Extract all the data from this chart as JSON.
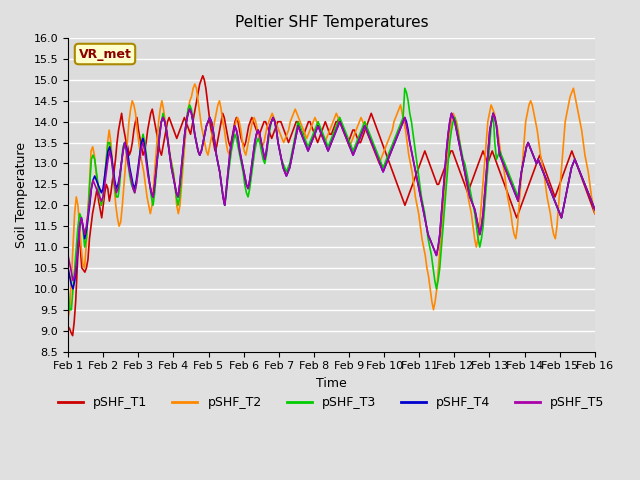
{
  "title": "Peltier SHF Temperatures",
  "xlabel": "Time",
  "ylabel": "Soil Temperature",
  "ylim": [
    8.5,
    16.0
  ],
  "yticks": [
    8.5,
    9.0,
    9.5,
    10.0,
    10.5,
    11.0,
    11.5,
    12.0,
    12.5,
    13.0,
    13.5,
    14.0,
    14.5,
    15.0,
    15.5,
    16.0
  ],
  "xtick_labels": [
    "Feb 1",
    "Feb 2",
    "Feb 3",
    "Feb 4",
    "Feb 5",
    "Feb 6",
    "Feb 7",
    "Feb 8",
    "Feb 9",
    "Feb 10",
    "Feb 11",
    "Feb 12",
    "Feb 13",
    "Feb 14",
    "Feb 15",
    "Feb 16"
  ],
  "series_colors": [
    "#cc0000",
    "#ff8800",
    "#00cc00",
    "#0000cc",
    "#aa00aa"
  ],
  "series_labels": [
    "pSHF_T1",
    "pSHF_T2",
    "pSHF_T3",
    "pSHF_T4",
    "pSHF_T5"
  ],
  "annotation_text": "VR_met",
  "annotation_color": "#8b0000",
  "annotation_bg": "#ffffcc",
  "annotation_edge": "#aa8800",
  "background_color": "#e0e0e0",
  "plot_bg": "#dcdcdc",
  "grid_color": "#ffffff",
  "t1": [
    9.1,
    9.05,
    8.95,
    8.88,
    9.2,
    9.7,
    10.5,
    11.2,
    11.0,
    10.5,
    10.45,
    10.4,
    10.5,
    10.7,
    11.2,
    11.5,
    11.8,
    12.0,
    12.2,
    12.4,
    12.1,
    11.9,
    11.7,
    12.0,
    12.3,
    12.5,
    12.4,
    12.1,
    12.3,
    12.6,
    12.8,
    13.1,
    13.5,
    13.8,
    14.0,
    14.2,
    13.9,
    13.7,
    13.5,
    13.4,
    13.2,
    13.3,
    13.5,
    13.8,
    14.0,
    14.1,
    13.8,
    13.6,
    13.4,
    13.2,
    13.3,
    13.5,
    13.8,
    14.0,
    14.2,
    14.3,
    14.1,
    13.9,
    13.7,
    13.5,
    13.3,
    13.2,
    13.4,
    13.6,
    13.8,
    14.0,
    14.1,
    14.0,
    13.9,
    13.8,
    13.7,
    13.6,
    13.7,
    13.8,
    13.9,
    14.0,
    14.1,
    14.0,
    13.9,
    13.8,
    13.7,
    13.9,
    14.1,
    14.3,
    14.5,
    14.7,
    14.9,
    15.0,
    15.1,
    15.0,
    14.8,
    14.5,
    14.2,
    13.9,
    13.7,
    13.5,
    13.3,
    13.4,
    13.6,
    13.8,
    14.0,
    14.2,
    14.1,
    13.9,
    13.7,
    13.5,
    13.4,
    13.6,
    13.8,
    14.0,
    14.1,
    14.0,
    13.8,
    13.6,
    13.5,
    13.4,
    13.5,
    13.7,
    13.9,
    14.0,
    14.1,
    14.0,
    13.9,
    13.8,
    13.7,
    13.7,
    13.8,
    13.9,
    14.0,
    14.0,
    13.9,
    13.8,
    13.7,
    13.6,
    13.7,
    13.8,
    13.9,
    14.0,
    14.0,
    14.0,
    13.9,
    13.8,
    13.7,
    13.6,
    13.5,
    13.6,
    13.7,
    13.8,
    13.9,
    14.0,
    14.0,
    13.9,
    13.8,
    13.7,
    13.7,
    13.8,
    13.9,
    14.0,
    14.0,
    13.9,
    13.8,
    13.7,
    13.6,
    13.5,
    13.6,
    13.7,
    13.8,
    13.9,
    14.0,
    13.9,
    13.8,
    13.7,
    13.7,
    13.8,
    13.9,
    14.0,
    14.0,
    14.1,
    14.0,
    13.9,
    13.8,
    13.7,
    13.6,
    13.5,
    13.6,
    13.7,
    13.8,
    13.8,
    13.7,
    13.6,
    13.5,
    13.5,
    13.6,
    13.7,
    13.8,
    13.9,
    14.0,
    14.1,
    14.2,
    14.1,
    14.0,
    13.9,
    13.8,
    13.7,
    13.6,
    13.5,
    13.4,
    13.3,
    13.2,
    13.1,
    13.0,
    12.9,
    12.8,
    12.7,
    12.6,
    12.5,
    12.4,
    12.3,
    12.2,
    12.1,
    12.0,
    12.1,
    12.2,
    12.3,
    12.4,
    12.5,
    12.6,
    12.7,
    12.8,
    12.9,
    13.0,
    13.1,
    13.2,
    13.3,
    13.2,
    13.1,
    13.0,
    12.9,
    12.8,
    12.7,
    12.6,
    12.5,
    12.5,
    12.6,
    12.7,
    12.8,
    12.9,
    13.0,
    13.1,
    13.2,
    13.3,
    13.3,
    13.2,
    13.1,
    13.0,
    12.9,
    12.8,
    12.7,
    12.6,
    12.5,
    12.4,
    12.3,
    12.4,
    12.5,
    12.6,
    12.7,
    12.8,
    12.9,
    13.0,
    13.1,
    13.2,
    13.3,
    13.2,
    13.1,
    13.0,
    13.1,
    13.2,
    13.3,
    13.2,
    13.1,
    13.0,
    12.9,
    12.8,
    12.7,
    12.6,
    12.5,
    12.4,
    12.3,
    12.2,
    12.1,
    12.0,
    11.9,
    11.8,
    11.7,
    11.8,
    11.9,
    12.0,
    12.1,
    12.2,
    12.3,
    12.4,
    12.5,
    12.6,
    12.7,
    12.8,
    12.9,
    13.0,
    13.1,
    13.2,
    13.1,
    13.0,
    12.9,
    12.8,
    12.7,
    12.6,
    12.5,
    12.4,
    12.3,
    12.2,
    12.3,
    12.4,
    12.5,
    12.6,
    12.7,
    12.8,
    12.9,
    13.0,
    13.1,
    13.2,
    13.3,
    13.2,
    13.1,
    13.0,
    12.9,
    12.8,
    12.7,
    12.6,
    12.5,
    12.4,
    12.3,
    12.2,
    12.1,
    12.0,
    11.9,
    11.8
  ],
  "t2": [
    9.3,
    9.5,
    10.2,
    11.0,
    11.8,
    12.2,
    12.0,
    11.5,
    11.0,
    10.6,
    10.5,
    11.0,
    11.8,
    12.5,
    13.3,
    13.4,
    13.2,
    12.8,
    12.5,
    12.2,
    12.0,
    12.1,
    12.5,
    13.0,
    13.5,
    13.8,
    13.5,
    13.0,
    12.5,
    12.0,
    11.7,
    11.5,
    11.6,
    12.0,
    12.5,
    13.0,
    13.5,
    14.0,
    14.3,
    14.5,
    14.4,
    14.2,
    13.8,
    13.5,
    13.2,
    13.0,
    12.8,
    12.5,
    12.2,
    12.0,
    11.8,
    12.0,
    12.5,
    13.0,
    13.5,
    14.0,
    14.3,
    14.5,
    14.3,
    14.0,
    13.8,
    13.5,
    13.2,
    13.0,
    12.8,
    12.5,
    12.0,
    11.8,
    12.0,
    12.5,
    13.0,
    13.5,
    14.0,
    14.3,
    14.5,
    14.6,
    14.8,
    14.9,
    14.8,
    14.5,
    14.2,
    13.9,
    13.7,
    13.5,
    13.3,
    13.2,
    13.4,
    13.6,
    13.8,
    14.0,
    14.2,
    14.4,
    14.5,
    14.3,
    14.0,
    13.8,
    13.5,
    13.3,
    13.2,
    13.4,
    13.6,
    13.8,
    14.0,
    14.1,
    14.0,
    13.8,
    13.5,
    13.3,
    13.2,
    13.4,
    13.6,
    13.8,
    14.0,
    14.1,
    14.0,
    13.8,
    13.6,
    13.5,
    13.4,
    13.5,
    13.7,
    13.9,
    14.0,
    14.1,
    14.2,
    14.1,
    14.0,
    13.9,
    13.8,
    13.7,
    13.6,
    13.5,
    13.6,
    13.7,
    13.8,
    14.0,
    14.1,
    14.2,
    14.3,
    14.2,
    14.1,
    14.0,
    13.9,
    13.8,
    13.7,
    13.6,
    13.7,
    13.8,
    13.9,
    14.0,
    14.1,
    14.0,
    13.9,
    13.8,
    13.7,
    13.6,
    13.5,
    13.6,
    13.7,
    13.8,
    13.9,
    14.0,
    14.1,
    14.2,
    14.1,
    14.0,
    13.9,
    13.8,
    13.7,
    13.6,
    13.5,
    13.4,
    13.5,
    13.6,
    13.7,
    13.8,
    13.9,
    14.0,
    14.1,
    14.0,
    13.9,
    13.8,
    13.7,
    13.6,
    13.5,
    13.4,
    13.3,
    13.2,
    13.1,
    13.0,
    13.1,
    13.2,
    13.3,
    13.4,
    13.5,
    13.6,
    13.7,
    13.8,
    14.0,
    14.1,
    14.2,
    14.3,
    14.4,
    14.2,
    14.0,
    13.8,
    13.5,
    13.2,
    13.0,
    12.8,
    12.5,
    12.2,
    12.0,
    11.8,
    11.5,
    11.2,
    11.0,
    10.8,
    10.5,
    10.3,
    10.0,
    9.7,
    9.5,
    9.7,
    10.0,
    10.5,
    11.0,
    11.5,
    12.0,
    12.5,
    13.0,
    13.5,
    13.8,
    14.0,
    14.2,
    14.1,
    14.0,
    13.8,
    13.5,
    13.2,
    13.0,
    12.8,
    12.5,
    12.2,
    12.0,
    11.8,
    11.5,
    11.2,
    11.0,
    11.2,
    11.5,
    12.0,
    12.5,
    13.0,
    13.5,
    14.0,
    14.2,
    14.4,
    14.3,
    14.2,
    14.0,
    13.8,
    13.5,
    13.2,
    13.0,
    12.8,
    12.5,
    12.2,
    12.0,
    11.8,
    11.5,
    11.3,
    11.2,
    11.5,
    12.0,
    12.5,
    13.0,
    13.5,
    14.0,
    14.2,
    14.4,
    14.5,
    14.4,
    14.2,
    14.0,
    13.8,
    13.5,
    13.2,
    13.0,
    12.8,
    12.5,
    12.2,
    12.0,
    11.8,
    11.5,
    11.3,
    11.2,
    11.5,
    12.0,
    12.5,
    13.0,
    13.5,
    14.0,
    14.2,
    14.4,
    14.6,
    14.7,
    14.8,
    14.6,
    14.4,
    14.2,
    14.0,
    13.8,
    13.5,
    13.2,
    13.0,
    12.8,
    12.5,
    12.2,
    12.0,
    11.8
  ],
  "t3": [
    10.0,
    9.5,
    9.5,
    10.0,
    10.5,
    11.0,
    11.5,
    11.8,
    11.7,
    11.4,
    11.0,
    11.2,
    11.8,
    12.5,
    13.1,
    13.2,
    13.1,
    12.8,
    12.5,
    12.2,
    12.0,
    12.2,
    12.7,
    13.1,
    13.5,
    13.5,
    13.2,
    12.8,
    12.4,
    12.2,
    12.2,
    12.5,
    13.0,
    13.4,
    13.5,
    13.3,
    13.0,
    12.7,
    12.5,
    12.4,
    12.3,
    12.5,
    12.8,
    13.2,
    13.5,
    13.7,
    13.5,
    13.2,
    12.8,
    12.5,
    12.2,
    12.0,
    12.3,
    12.8,
    13.3,
    13.8,
    14.0,
    14.2,
    14.0,
    13.8,
    13.5,
    13.2,
    13.0,
    12.8,
    12.5,
    12.2,
    12.0,
    12.2,
    12.7,
    13.2,
    13.7,
    14.0,
    14.3,
    14.4,
    14.3,
    14.0,
    13.7,
    13.5,
    13.3,
    13.2,
    13.3,
    13.5,
    13.7,
    13.9,
    14.0,
    14.1,
    14.0,
    13.8,
    13.5,
    13.2,
    13.0,
    12.8,
    12.5,
    12.2,
    12.0,
    12.3,
    12.7,
    13.0,
    13.3,
    13.5,
    13.7,
    13.6,
    13.4,
    13.2,
    13.0,
    12.8,
    12.5,
    12.3,
    12.2,
    12.4,
    12.7,
    13.0,
    13.3,
    13.5,
    13.6,
    13.5,
    13.3,
    13.1,
    13.0,
    13.2,
    13.5,
    13.8,
    14.0,
    14.1,
    14.0,
    13.8,
    13.5,
    13.3,
    13.1,
    13.0,
    12.9,
    12.8,
    12.9,
    13.0,
    13.2,
    13.4,
    13.6,
    13.8,
    14.0,
    13.9,
    13.8,
    13.7,
    13.6,
    13.5,
    13.4,
    13.5,
    13.6,
    13.7,
    13.8,
    13.9,
    14.0,
    13.9,
    13.8,
    13.7,
    13.6,
    13.5,
    13.4,
    13.5,
    13.6,
    13.7,
    13.8,
    13.9,
    14.0,
    14.1,
    14.0,
    13.9,
    13.8,
    13.7,
    13.6,
    13.5,
    13.4,
    13.3,
    13.4,
    13.5,
    13.6,
    13.7,
    13.8,
    13.9,
    14.0,
    13.9,
    13.8,
    13.7,
    13.6,
    13.5,
    13.4,
    13.3,
    13.2,
    13.1,
    13.0,
    12.9,
    13.0,
    13.1,
    13.2,
    13.3,
    13.4,
    13.5,
    13.6,
    13.7,
    13.8,
    13.9,
    14.0,
    14.1,
    14.8,
    14.7,
    14.5,
    14.2,
    14.0,
    13.7,
    13.4,
    13.1,
    12.8,
    12.5,
    12.2,
    12.0,
    11.8,
    11.5,
    11.2,
    11.0,
    10.8,
    10.5,
    10.2,
    10.0,
    10.2,
    10.5,
    11.0,
    11.5,
    12.0,
    12.5,
    13.0,
    13.5,
    13.8,
    14.0,
    14.1,
    13.9,
    13.7,
    13.5,
    13.3,
    13.1,
    13.0,
    12.8,
    12.6,
    12.4,
    12.2,
    12.0,
    11.8,
    11.5,
    11.2,
    11.0,
    11.2,
    11.5,
    12.0,
    12.5,
    13.0,
    13.5,
    14.0,
    14.2,
    13.5,
    13.1,
    13.2,
    13.3,
    13.2,
    13.1,
    13.0,
    12.9,
    12.8,
    12.7,
    12.6,
    12.5,
    12.4,
    12.3,
    12.2,
    12.5,
    12.8,
    13.0,
    13.2,
    13.4,
    13.5,
    13.4,
    13.3,
    13.2,
    13.1,
    13.0,
    13.1,
    13.0,
    12.9,
    12.8,
    12.7,
    12.6,
    12.5,
    12.4,
    12.3,
    12.2,
    12.1,
    12.0,
    11.9,
    11.8,
    11.7,
    11.9,
    12.1,
    12.3,
    12.5,
    12.7,
    12.9,
    13.0,
    13.1,
    13.0,
    12.9,
    12.8,
    12.7,
    12.6,
    12.5,
    12.4,
    12.3,
    12.2,
    12.1,
    12.0,
    11.9
  ],
  "t4": [
    10.5,
    10.3,
    10.1,
    10.0,
    10.2,
    10.5,
    11.0,
    11.5,
    11.7,
    11.5,
    11.2,
    11.4,
    11.7,
    12.0,
    12.4,
    12.6,
    12.7,
    12.6,
    12.5,
    12.4,
    12.3,
    12.4,
    12.7,
    13.0,
    13.3,
    13.4,
    13.2,
    12.9,
    12.6,
    12.4,
    12.5,
    12.7,
    13.0,
    13.3,
    13.5,
    13.4,
    13.2,
    12.9,
    12.7,
    12.5,
    12.4,
    12.6,
    12.9,
    13.2,
    13.5,
    13.6,
    13.4,
    13.1,
    12.8,
    12.5,
    12.3,
    12.2,
    12.5,
    12.9,
    13.3,
    13.7,
    14.0,
    14.1,
    14.0,
    13.8,
    13.5,
    13.2,
    12.9,
    12.7,
    12.5,
    12.3,
    12.2,
    12.5,
    12.9,
    13.3,
    13.7,
    14.0,
    14.2,
    14.3,
    14.2,
    14.0,
    13.7,
    13.5,
    13.3,
    13.2,
    13.3,
    13.5,
    13.7,
    13.9,
    14.0,
    14.1,
    14.0,
    13.8,
    13.5,
    13.2,
    13.0,
    12.8,
    12.5,
    12.2,
    12.0,
    12.4,
    12.8,
    13.2,
    13.5,
    13.7,
    13.9,
    13.8,
    13.6,
    13.3,
    13.1,
    12.9,
    12.7,
    12.5,
    12.4,
    12.6,
    12.9,
    13.2,
    13.5,
    13.7,
    13.8,
    13.7,
    13.5,
    13.3,
    13.1,
    13.3,
    13.6,
    13.9,
    14.0,
    14.1,
    14.0,
    13.8,
    13.5,
    13.3,
    13.1,
    12.9,
    12.8,
    12.7,
    12.8,
    12.9,
    13.1,
    13.3,
    13.5,
    13.7,
    13.9,
    13.8,
    13.7,
    13.6,
    13.5,
    13.4,
    13.3,
    13.4,
    13.5,
    13.6,
    13.7,
    13.8,
    13.9,
    13.8,
    13.7,
    13.6,
    13.5,
    13.4,
    13.3,
    13.4,
    13.5,
    13.6,
    13.7,
    13.8,
    13.9,
    14.0,
    13.9,
    13.8,
    13.7,
    13.6,
    13.5,
    13.4,
    13.3,
    13.2,
    13.3,
    13.4,
    13.5,
    13.6,
    13.7,
    13.8,
    13.9,
    13.8,
    13.7,
    13.6,
    13.5,
    13.4,
    13.3,
    13.2,
    13.1,
    13.0,
    12.9,
    12.8,
    12.9,
    13.0,
    13.1,
    13.2,
    13.3,
    13.4,
    13.5,
    13.6,
    13.7,
    13.8,
    13.9,
    14.0,
    14.1,
    14.0,
    13.8,
    13.5,
    13.3,
    13.1,
    12.9,
    12.7,
    12.5,
    12.3,
    12.1,
    11.9,
    11.7,
    11.5,
    11.3,
    11.2,
    11.1,
    11.0,
    10.9,
    10.8,
    11.0,
    11.3,
    11.8,
    12.3,
    12.8,
    13.3,
    13.7,
    14.0,
    14.2,
    14.1,
    14.0,
    13.8,
    13.6,
    13.4,
    13.2,
    13.0,
    12.8,
    12.6,
    12.4,
    12.2,
    12.1,
    12.0,
    11.9,
    11.7,
    11.5,
    11.3,
    11.5,
    11.8,
    12.3,
    12.8,
    13.3,
    13.8,
    14.0,
    14.2,
    14.1,
    13.9,
    13.5,
    13.2,
    13.1,
    13.0,
    12.9,
    12.8,
    12.7,
    12.6,
    12.5,
    12.4,
    12.3,
    12.2,
    12.1,
    12.5,
    12.8,
    13.0,
    13.2,
    13.4,
    13.5,
    13.4,
    13.3,
    13.2,
    13.1,
    13.0,
    13.1,
    13.0,
    12.9,
    12.8,
    12.7,
    12.6,
    12.5,
    12.4,
    12.3,
    12.2,
    12.1,
    12.0,
    11.9,
    11.8,
    11.7,
    11.9,
    12.1,
    12.3,
    12.5,
    12.7,
    12.9,
    13.0,
    13.1,
    13.0,
    12.9,
    12.8,
    12.7,
    12.6,
    12.5,
    12.4,
    12.3,
    12.2,
    12.1,
    12.0,
    11.9
  ],
  "t5": [
    10.8,
    10.6,
    10.4,
    10.2,
    10.3,
    10.6,
    11.0,
    11.5,
    11.7,
    11.5,
    11.3,
    11.5,
    11.8,
    12.1,
    12.4,
    12.6,
    12.5,
    12.4,
    12.3,
    12.2,
    12.1,
    12.2,
    12.5,
    12.8,
    13.1,
    13.3,
    13.1,
    12.8,
    12.5,
    12.3,
    12.4,
    12.7,
    13.0,
    13.3,
    13.5,
    13.3,
    13.0,
    12.8,
    12.6,
    12.4,
    12.3,
    12.5,
    12.8,
    13.1,
    13.4,
    13.5,
    13.3,
    13.0,
    12.7,
    12.5,
    12.3,
    12.2,
    12.5,
    12.9,
    13.3,
    13.7,
    14.0,
    14.1,
    14.0,
    13.8,
    13.5,
    13.2,
    12.9,
    12.7,
    12.5,
    12.3,
    12.2,
    12.5,
    12.9,
    13.3,
    13.7,
    14.0,
    14.2,
    14.3,
    14.2,
    14.0,
    13.7,
    13.5,
    13.3,
    13.2,
    13.3,
    13.5,
    13.7,
    13.9,
    14.0,
    14.1,
    14.0,
    13.8,
    13.5,
    13.2,
    13.0,
    12.8,
    12.5,
    12.2,
    12.0,
    12.4,
    12.8,
    13.2,
    13.5,
    13.7,
    13.9,
    13.8,
    13.6,
    13.3,
    13.1,
    12.9,
    12.7,
    12.5,
    12.4,
    12.6,
    12.9,
    13.2,
    13.5,
    13.7,
    13.8,
    13.7,
    13.5,
    13.3,
    13.1,
    13.3,
    13.6,
    13.9,
    14.0,
    14.1,
    14.0,
    13.8,
    13.5,
    13.3,
    13.1,
    12.9,
    12.8,
    12.7,
    12.8,
    12.9,
    13.1,
    13.3,
    13.5,
    13.7,
    13.9,
    13.8,
    13.7,
    13.6,
    13.5,
    13.4,
    13.3,
    13.4,
    13.5,
    13.6,
    13.7,
    13.8,
    13.9,
    13.8,
    13.7,
    13.6,
    13.5,
    13.4,
    13.3,
    13.4,
    13.5,
    13.6,
    13.7,
    13.8,
    13.9,
    14.0,
    13.9,
    13.8,
    13.7,
    13.6,
    13.5,
    13.4,
    13.3,
    13.2,
    13.3,
    13.4,
    13.5,
    13.6,
    13.7,
    13.8,
    13.9,
    13.8,
    13.7,
    13.6,
    13.5,
    13.4,
    13.3,
    13.2,
    13.1,
    13.0,
    12.9,
    12.8,
    12.9,
    13.0,
    13.1,
    13.2,
    13.3,
    13.4,
    13.5,
    13.6,
    13.7,
    13.8,
    13.9,
    14.0,
    14.1,
    13.9,
    13.7,
    13.5,
    13.3,
    13.1,
    12.9,
    12.7,
    12.5,
    12.3,
    12.1,
    11.9,
    11.7,
    11.5,
    11.3,
    11.2,
    11.1,
    11.0,
    10.9,
    10.8,
    11.0,
    11.3,
    11.8,
    12.3,
    12.8,
    13.3,
    13.7,
    14.0,
    14.2,
    14.1,
    14.0,
    13.8,
    13.6,
    13.4,
    13.2,
    13.0,
    12.8,
    12.6,
    12.4,
    12.2,
    12.1,
    12.0,
    11.9,
    11.7,
    11.5,
    11.3,
    11.5,
    11.8,
    12.3,
    12.8,
    13.3,
    13.8,
    14.0,
    14.2,
    14.1,
    13.9,
    13.5,
    13.2,
    13.1,
    13.0,
    12.9,
    12.8,
    12.7,
    12.6,
    12.5,
    12.4,
    12.3,
    12.2,
    12.1,
    12.5,
    12.8,
    13.0,
    13.2,
    13.4,
    13.5,
    13.4,
    13.3,
    13.2,
    13.1,
    13.0,
    13.1,
    13.0,
    12.9,
    12.8,
    12.7,
    12.6,
    12.5,
    12.4,
    12.3,
    12.2,
    12.1,
    12.0,
    11.9,
    11.8,
    11.7,
    11.9,
    12.1,
    12.3,
    12.5,
    12.7,
    12.9,
    13.0,
    13.1,
    13.0,
    12.9,
    12.8,
    12.7,
    12.6,
    12.5,
    12.4,
    12.3,
    12.2,
    12.1,
    12.0,
    11.9
  ]
}
